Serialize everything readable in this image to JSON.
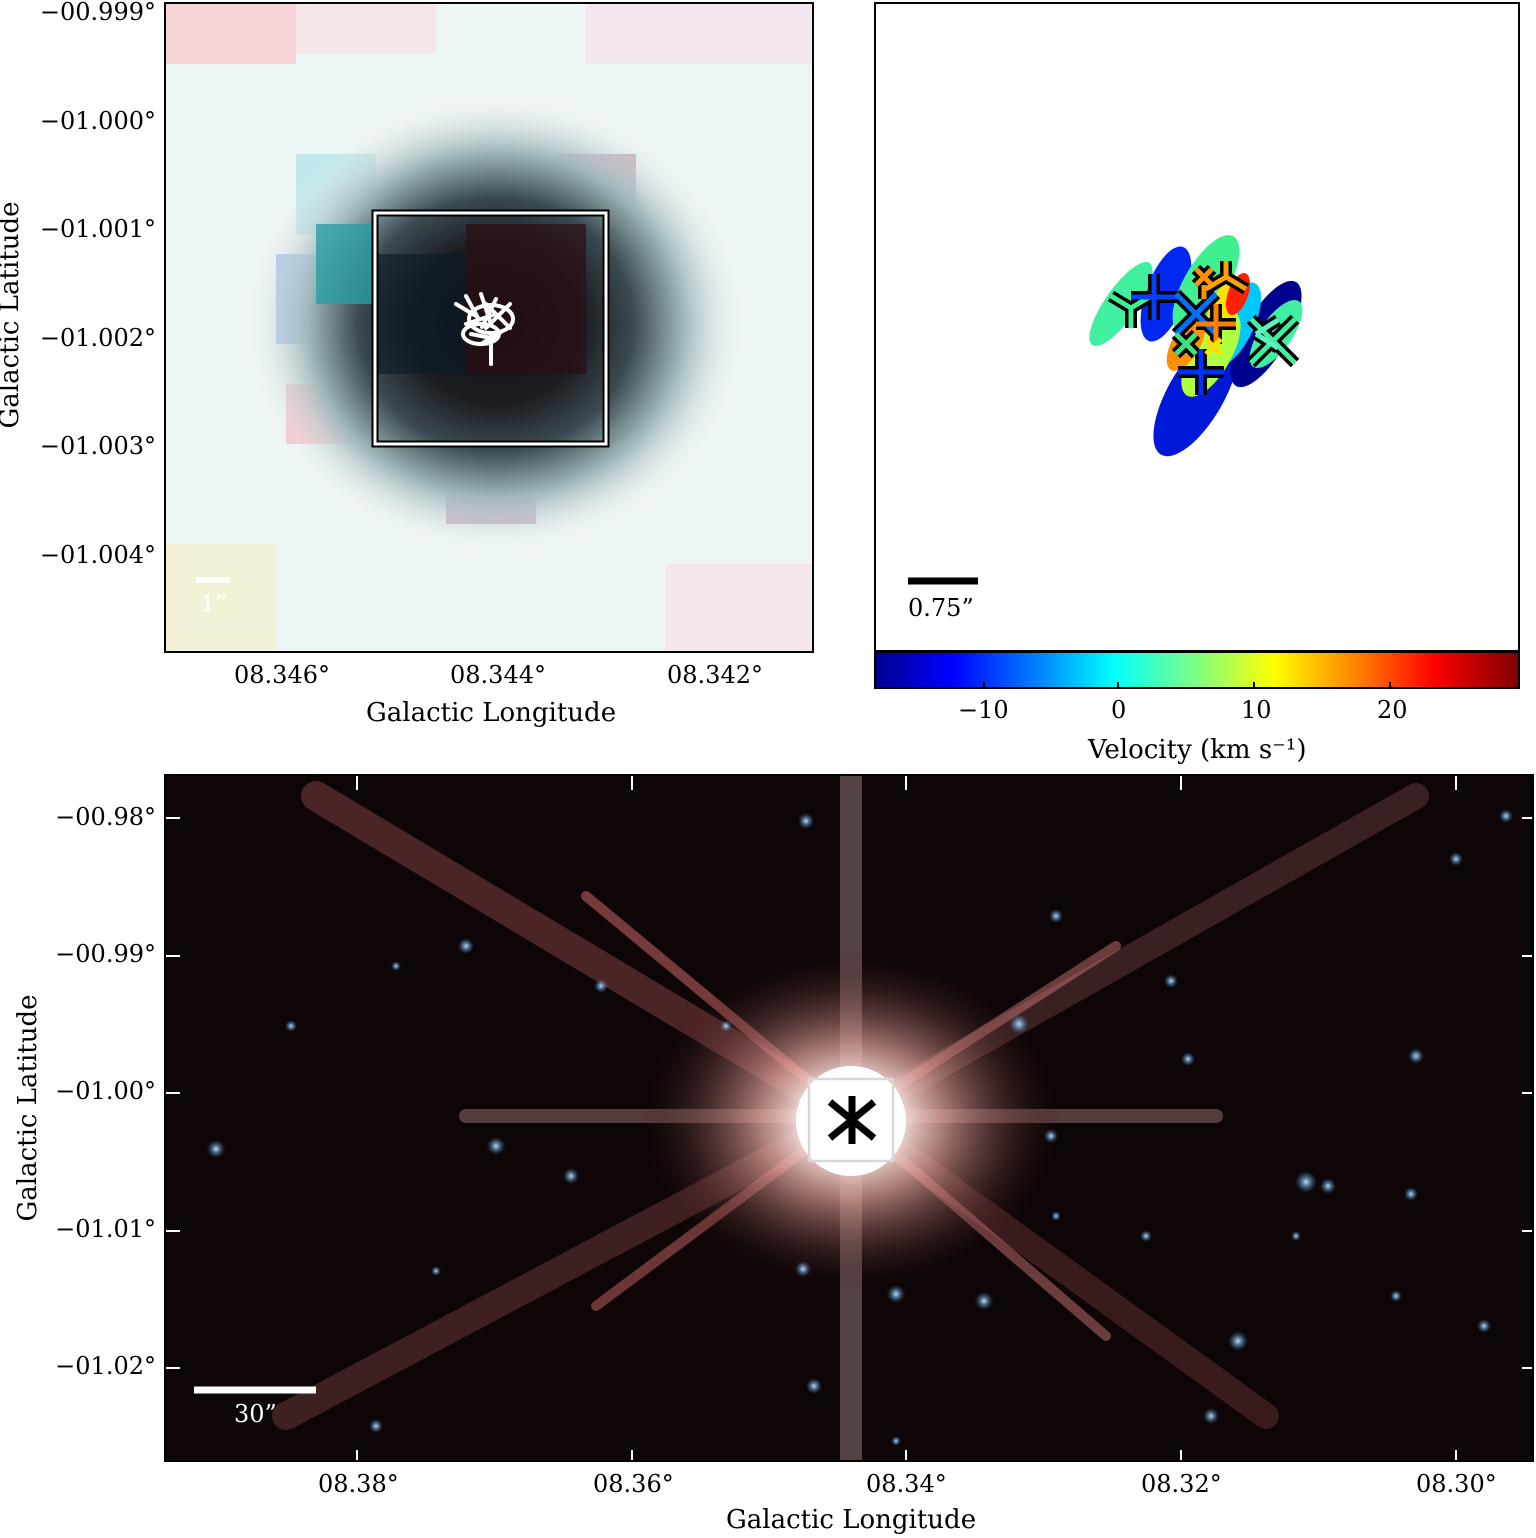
{
  "top_left": {
    "y_ticks": [
      "−00.999°",
      "−01.000°",
      "−01.001°",
      "−01.002°",
      "−01.003°",
      "−01.004°"
    ],
    "x_ticks": [
      "08.346°",
      "08.344°",
      "08.342°"
    ],
    "xlabel": "Galactic Longitude",
    "ylabel": "Galactic Latitude",
    "scalebar": "1”"
  },
  "top_right": {
    "scalebar": "0.75”",
    "colorbar": {
      "label": "Velocity (km s⁻¹)",
      "ticks": [
        "−10",
        "0",
        "10",
        "20"
      ],
      "range": [
        -17,
        29
      ],
      "colormap": "jet"
    }
  },
  "bottom": {
    "y_ticks": [
      "−00.98°",
      "−00.99°",
      "−01.00°",
      "−01.01°",
      "−01.02°"
    ],
    "x_ticks": [
      "08.38°",
      "08.36°",
      "08.34°",
      "08.32°",
      "08.30°"
    ],
    "xlabel": "Galactic Longitude",
    "ylabel": "Galactic Latitude",
    "scalebar": "30”"
  },
  "colors": {
    "frame": "#000000",
    "sky_bottom": "#0a0405",
    "star_glow": "#ffe0dc",
    "ring_dark": "#1a1418"
  }
}
